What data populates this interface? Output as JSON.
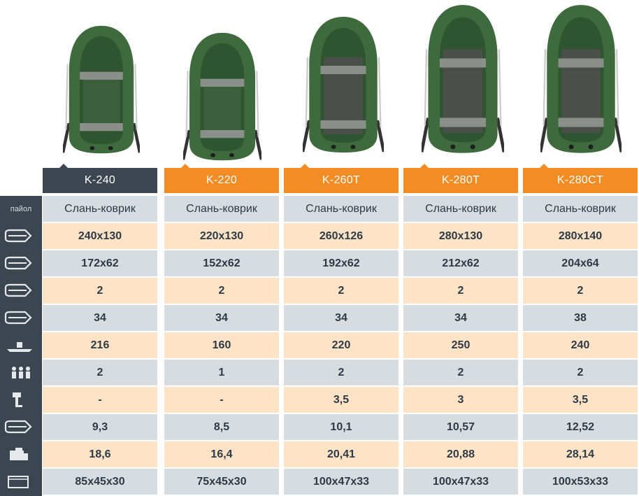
{
  "models": [
    {
      "name": "K-240",
      "active": true,
      "values": [
        "Слань-коврик",
        "240x130",
        "172x62",
        "2",
        "34",
        "216",
        "2",
        "-",
        "9,3",
        "18,6",
        "85x45x30"
      ]
    },
    {
      "name": "K-220",
      "active": false,
      "values": [
        "Слань-коврик",
        "220x130",
        "152x62",
        "2",
        "34",
        "160",
        "1",
        "-",
        "8,5",
        "16,4",
        "75x45x30"
      ]
    },
    {
      "name": "K-260T",
      "active": false,
      "values": [
        "Слань-коврик",
        "260x126",
        "192x62",
        "2",
        "34",
        "220",
        "2",
        "3,5",
        "10,1",
        "20,41",
        "100x47x33"
      ]
    },
    {
      "name": "K-280T",
      "active": false,
      "values": [
        "Слань-коврик",
        "280x130",
        "212x62",
        "2",
        "34",
        "250",
        "2",
        "3",
        "10,57",
        "20,88",
        "100x47x33"
      ]
    },
    {
      "name": "K-280CT",
      "active": false,
      "values": [
        "Слань-коврик",
        "280x140",
        "204x64",
        "2",
        "38",
        "240",
        "2",
        "3,5",
        "12,52",
        "28,14",
        "100x53x33"
      ]
    }
  ],
  "row_labels": {
    "floor": "пайол"
  },
  "row_icons": [
    "floor",
    "length-width-icon",
    "inner-size-icon",
    "chambers-icon",
    "tube-diameter-icon",
    "load-capacity-icon",
    "people-icon",
    "motor-power-icon",
    "boat-weight-icon",
    "kit-weight-icon",
    "package-size-icon"
  ],
  "colors": {
    "orange": "#f28c23",
    "dark": "#3c4650",
    "row_light": "#ffe3c6",
    "row_grey": "#d7dce1",
    "boat_green": "#3e6a3e"
  }
}
